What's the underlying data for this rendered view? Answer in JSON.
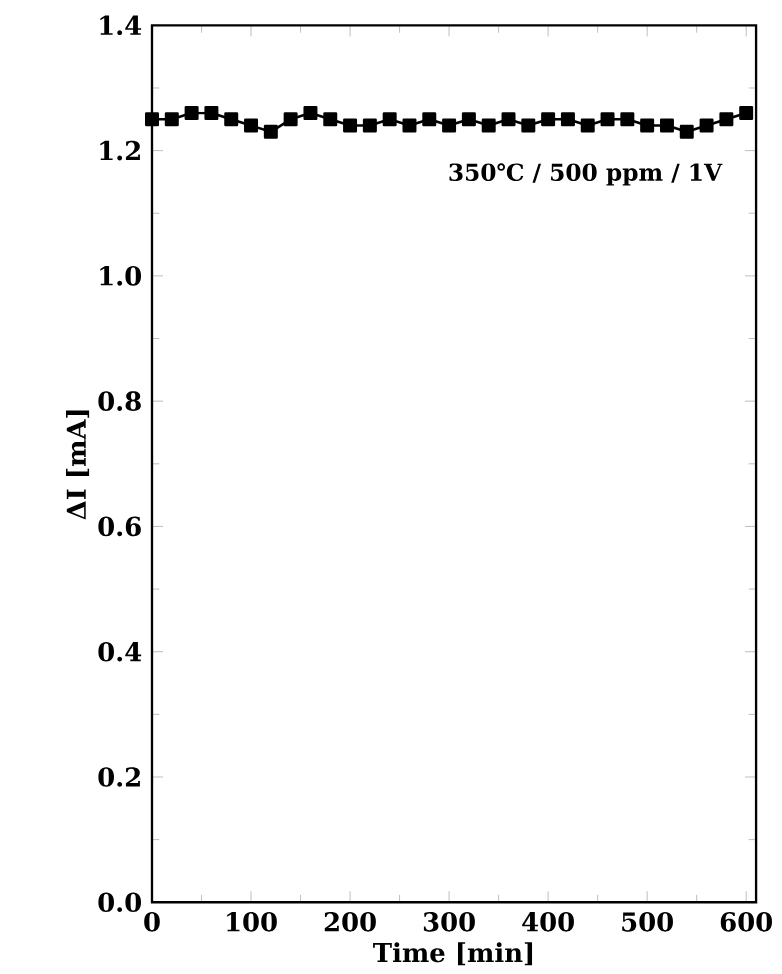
{
  "chart_data": {
    "type": "line",
    "xlabel": "Time [min]",
    "ylabel": "ΔI [mA]",
    "annotations": [
      "350℃ / 500 ppm / 1V"
    ],
    "x": [
      0,
      20,
      40,
      60,
      80,
      100,
      120,
      140,
      160,
      180,
      200,
      220,
      240,
      260,
      280,
      300,
      320,
      340,
      360,
      380,
      400,
      420,
      440,
      460,
      480,
      500,
      520,
      540,
      560,
      580,
      600
    ],
    "series": [
      {
        "color": "#000000",
        "values": [
          1.25,
          1.25,
          1.26,
          1.26,
          1.25,
          1.24,
          1.23,
          1.25,
          1.26,
          1.25,
          1.24,
          1.24,
          1.25,
          1.24,
          1.25,
          1.24,
          1.25,
          1.24,
          1.25,
          1.24,
          1.25,
          1.25,
          1.24,
          1.25,
          1.25,
          1.24,
          1.24,
          1.23,
          1.24,
          1.25,
          1.26
        ]
      }
    ],
    "xlim": [
      0,
      610
    ],
    "ylim": [
      0,
      1.4
    ],
    "xticks": [
      0,
      100,
      200,
      300,
      400,
      500,
      600
    ],
    "yticks": [
      {
        "value": 0,
        "label": "0.0"
      },
      0.2,
      0.4,
      0.6,
      0.8,
      {
        "value": 1,
        "label": "1.0"
      },
      1.2,
      1.4
    ],
    "marker": "square",
    "line_style": "solid"
  }
}
